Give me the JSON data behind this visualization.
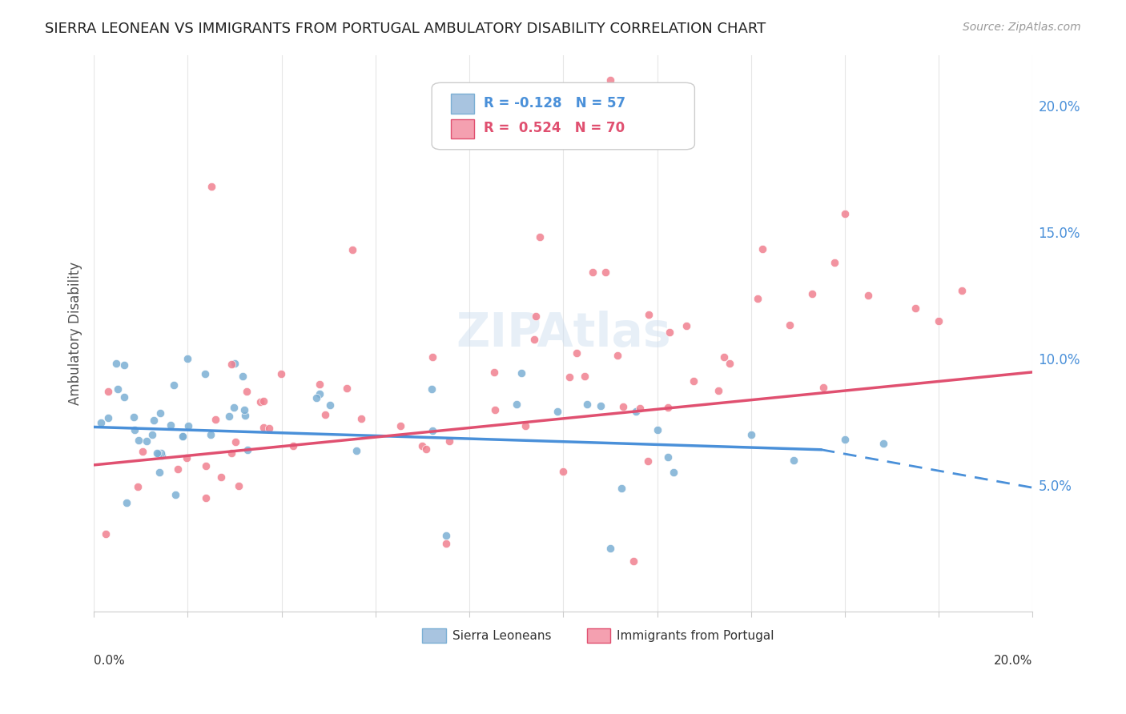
{
  "title": "SIERRA LEONEAN VS IMMIGRANTS FROM PORTUGAL AMBULATORY DISABILITY CORRELATION CHART",
  "source": "Source: ZipAtlas.com",
  "ylabel": "Ambulatory Disability",
  "x_min": 0.0,
  "x_max": 0.2,
  "y_min": 0.0,
  "y_max": 0.22,
  "y_ticks": [
    0.05,
    0.1,
    0.15,
    0.2
  ],
  "y_tick_labels": [
    "5.0%",
    "10.0%",
    "15.0%",
    "20.0%"
  ],
  "sierra_leone_color": "#7bafd4",
  "portugal_color": "#f08090",
  "sierra_leone_line_color": "#4a90d9",
  "portugal_line_color": "#e05070",
  "sierra_leone_R": -0.128,
  "sierra_leone_N": 57,
  "portugal_R": 0.524,
  "portugal_N": 70,
  "background_color": "#ffffff",
  "grid_color": "#e0e0e0",
  "watermark": "ZIPAtlas"
}
